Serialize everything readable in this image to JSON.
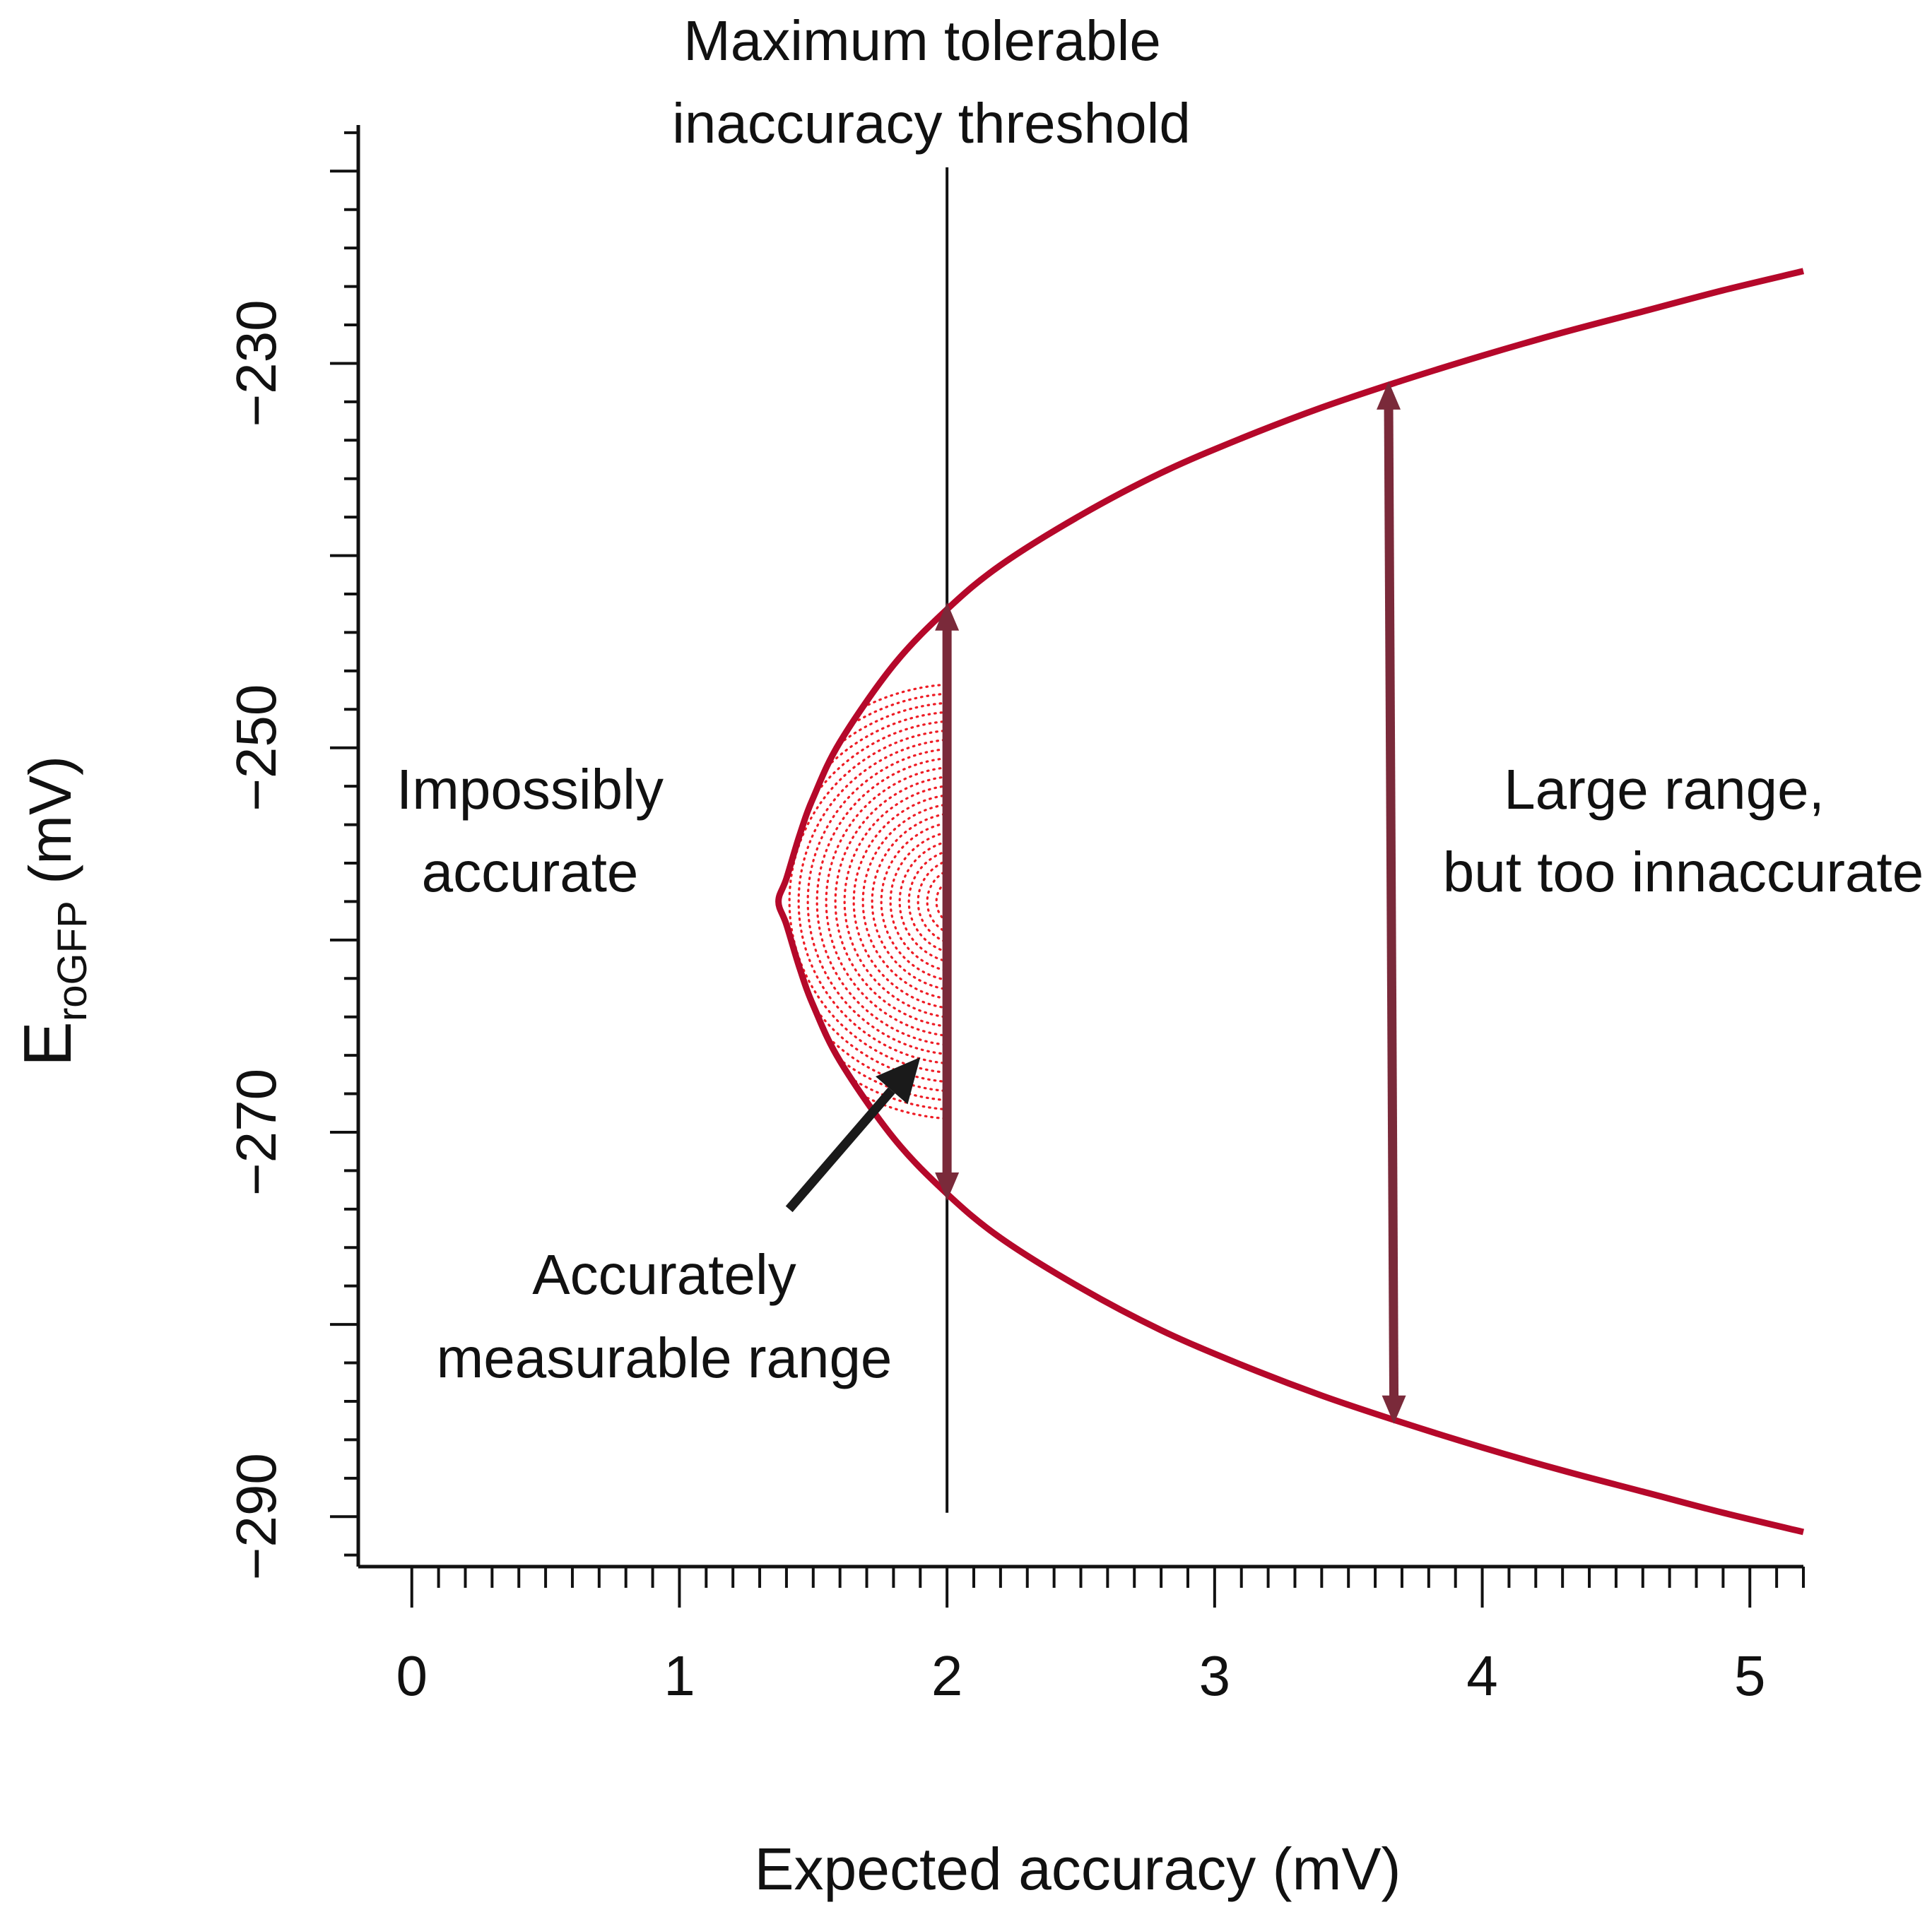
{
  "chart_data": {
    "type": "line",
    "xlabel": "Expected accuracy (mV)",
    "ylabel": {
      "main": "E",
      "subscript": "roGFP",
      "unit": " (mV)"
    },
    "xlim": [
      -0.2,
      5.2
    ],
    "ylim": [
      -292.6,
      -217.6
    ],
    "x_ticks": [
      0,
      1,
      2,
      3,
      4,
      5
    ],
    "x_tick_labels": [
      "0",
      "1",
      "2",
      "3",
      "4",
      "5"
    ],
    "y_ticks": [
      -230,
      -250,
      -270,
      -290
    ],
    "y_tick_labels": [
      "−230",
      "−250",
      "−270",
      "−290"
    ],
    "grid": false,
    "series": [
      {
        "color": "#b5082a",
        "vertex": {
          "x": 1.37,
          "y": -258
        },
        "x": [
          5.2,
          4.9,
          4.6,
          4.3,
          4.0,
          3.7,
          3.4,
          3.1,
          2.8,
          2.5,
          2.2,
          2.0,
          1.8,
          1.6,
          1.5,
          1.45,
          1.4,
          1.37,
          1.4,
          1.45,
          1.5,
          1.6,
          1.8,
          2.0,
          2.2,
          2.5,
          2.8,
          3.1,
          3.4,
          3.7,
          4.0,
          4.3,
          4.6,
          4.9,
          5.2
        ],
        "y": [
          -225.2,
          -226.2,
          -227.3,
          -228.4,
          -229.6,
          -230.9,
          -232.3,
          -233.9,
          -235.7,
          -237.9,
          -240.5,
          -242.8,
          -245.7,
          -249.7,
          -252.6,
          -254.5,
          -256.8,
          -258.0,
          -259.2,
          -261.5,
          -263.4,
          -266.3,
          -270.3,
          -273.2,
          -275.5,
          -278.1,
          -280.3,
          -282.1,
          -283.7,
          -285.1,
          -286.4,
          -287.6,
          -288.7,
          -289.8,
          -290.8
        ]
      }
    ],
    "threshold": {
      "x": 2.0,
      "y_range": [
        -219.8,
        -289.8
      ],
      "label_lines": [
        "Maximum tolerable",
        "inaccuracy threshold"
      ]
    },
    "range_arrows": [
      {
        "x": 2.0,
        "y_from": -242.8,
        "y_to": -273.2,
        "color": "#7a2a3a"
      },
      {
        "x_from": 3.65,
        "x_to": 3.67,
        "y_from": -231.3,
        "y_to": -284.8,
        "color": "#7a2a3a"
      }
    ],
    "shaded_region": {
      "x_from": 1.37,
      "x_to": 2.0,
      "y_from": -242.8,
      "y_to": -273.2,
      "pattern": "dotted",
      "color": "#ee1c25"
    },
    "annotations": {
      "impossibly": [
        "Impossibly",
        "accurate"
      ],
      "large_range": [
        "Large range,",
        "but too innaccurate"
      ],
      "accurately": [
        "Accurately",
        "measurable range"
      ]
    },
    "pointer_arrow": {
      "from": {
        "x": 1.41,
        "y": -274.0
      },
      "to": {
        "x": 1.9,
        "y": -266.1
      },
      "color": "#1a1a1a"
    }
  }
}
